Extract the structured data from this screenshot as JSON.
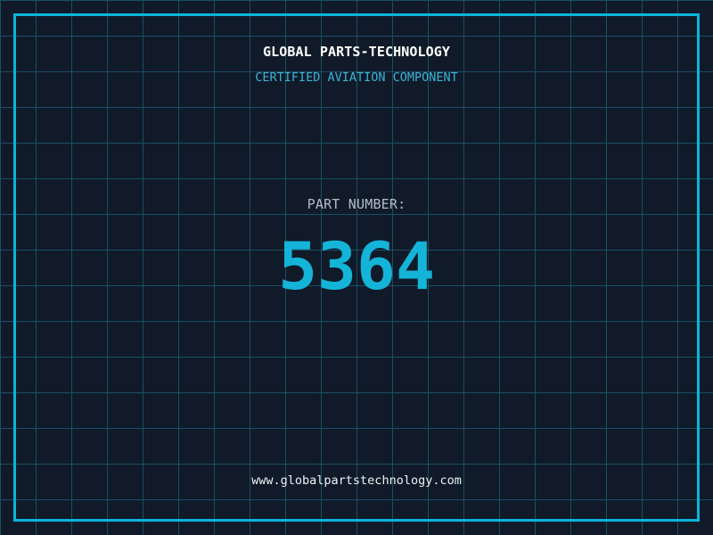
{
  "theme": {
    "background": "#101a29",
    "grid_line_color": "#1a4f63",
    "frame_accent_color": "#0ab5dc",
    "title_color": "#ffffff",
    "tagline_color": "#3bb4d8",
    "label_color": "#b5bcc6",
    "part_number_color": "#14b4d9",
    "website_color": "#eef2f4"
  },
  "header": {
    "company_name": "GLOBAL PARTS-TECHNOLOGY",
    "tagline": "CERTIFIED AVIATION COMPONENT"
  },
  "part": {
    "label": "PART NUMBER:",
    "number": "5364"
  },
  "footer": {
    "website": "www.globalpartstechnology.com"
  }
}
